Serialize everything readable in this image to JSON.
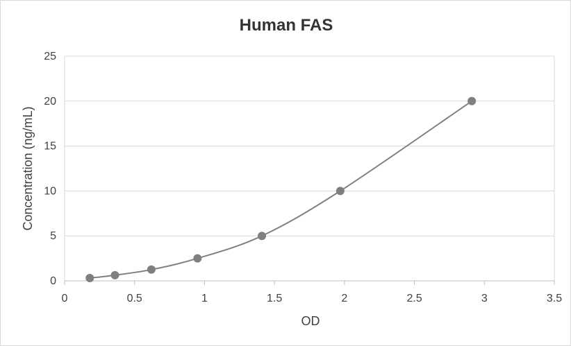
{
  "chart_data": {
    "type": "scatter",
    "title": "Human FAS",
    "xlabel": "OD",
    "ylabel": "Concentration (ng/mL)",
    "xlim": [
      0,
      3.5
    ],
    "ylim": [
      0,
      25
    ],
    "xticks": [
      "0",
      "0.5",
      "1",
      "1.5",
      "2",
      "2.5",
      "3",
      "3.5"
    ],
    "yticks": [
      "0",
      "5",
      "10",
      "15",
      "20",
      "25"
    ],
    "grid": true,
    "smooth_line": true,
    "series": [
      {
        "x": [
          0.18,
          0.36,
          0.62,
          0.95,
          1.41,
          1.97,
          2.91
        ],
        "y": [
          0.31,
          0.63,
          1.25,
          2.5,
          5,
          10,
          20
        ]
      }
    ],
    "colors": {
      "marker": "#7f7f7f",
      "line": "#808080",
      "grid": "#d9d9d9",
      "axis": "#bfbfbf",
      "text": "#404040",
      "title": "#333333"
    }
  }
}
